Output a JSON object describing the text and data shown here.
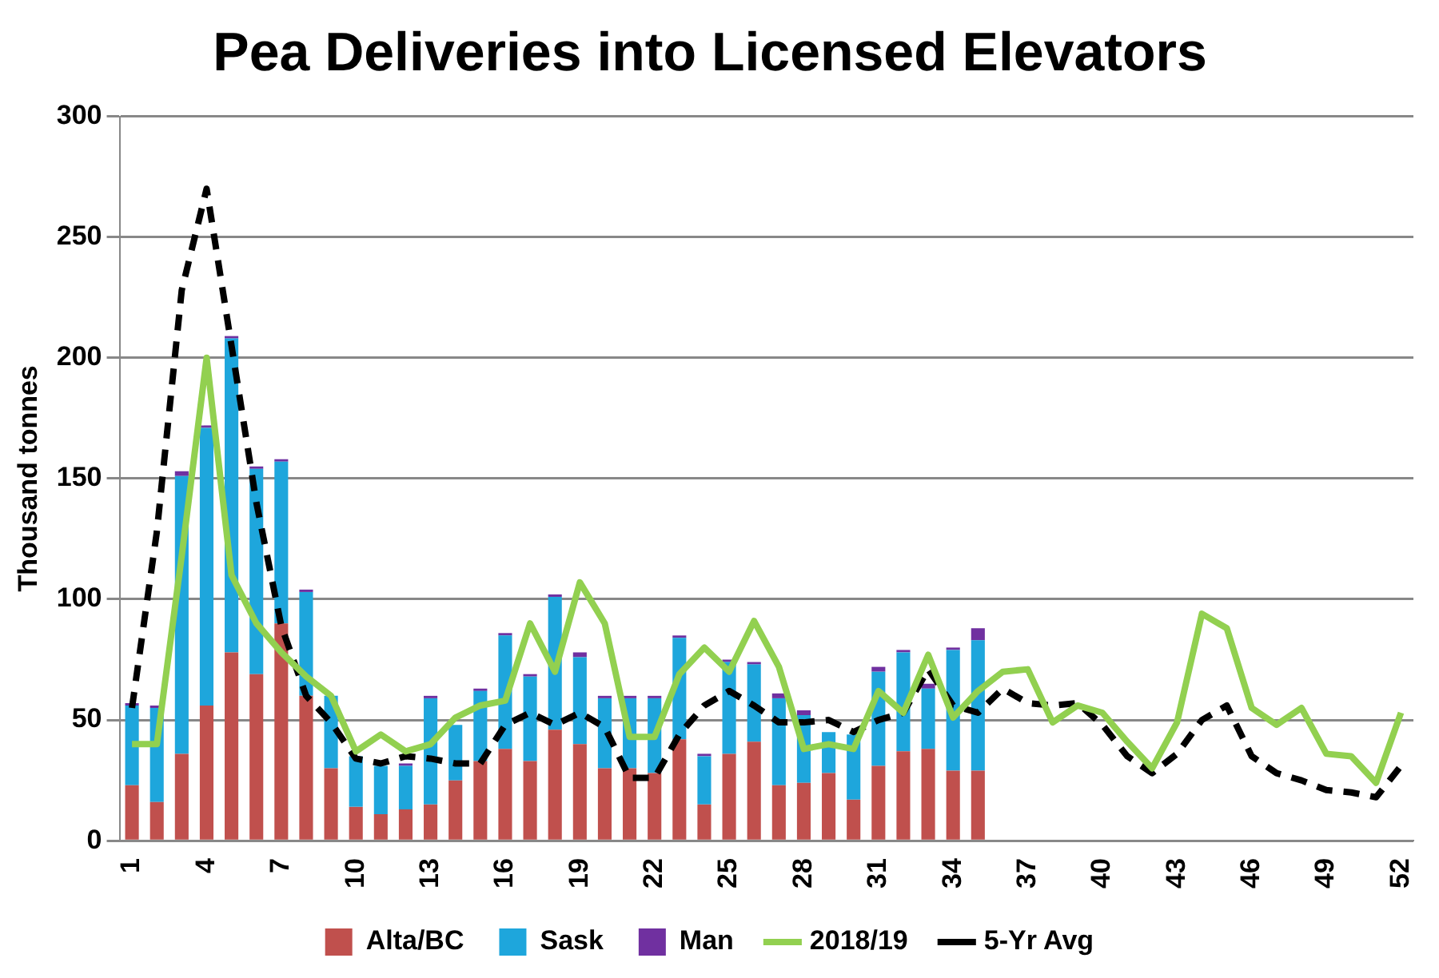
{
  "chart_data": {
    "type": "bar",
    "title": "Pea Deliveries into Licensed Elevators",
    "ylabel": "Thousand tonnes",
    "stacked": true,
    "grid": "y",
    "legend": "bottom",
    "marker": "none",
    "categories": [
      "1",
      null,
      null,
      "4",
      null,
      null,
      "7",
      null,
      null,
      "10",
      null,
      null,
      "13",
      null,
      null,
      "16",
      null,
      null,
      "19",
      null,
      null,
      "22",
      null,
      null,
      "25",
      null,
      null,
      "28",
      null,
      null,
      "31",
      null,
      null,
      "34",
      null,
      null,
      "37",
      null,
      null,
      "40",
      null,
      null,
      "43",
      null,
      null,
      "46",
      null,
      null,
      "49",
      null,
      null,
      "52"
    ],
    "ylim": [
      0,
      300
    ],
    "yticks": [
      0,
      50,
      100,
      150,
      200,
      250,
      300
    ],
    "series": [
      {
        "name": "Alta/BC",
        "color": "#c0504d",
        "values": [
          23,
          16,
          36,
          56,
          78,
          69,
          90,
          60,
          30,
          14,
          11,
          13,
          15,
          25,
          33,
          38,
          33,
          46,
          40,
          30,
          30,
          28,
          42,
          15,
          36,
          41,
          23,
          24,
          28,
          17,
          31,
          37,
          38,
          29,
          29,
          null,
          null,
          null,
          null,
          null,
          null,
          null,
          null,
          null,
          null,
          null,
          null,
          null,
          null,
          null,
          null,
          null
        ]
      },
      {
        "name": "Sask",
        "color": "#1ea6dc",
        "values": [
          33,
          39,
          115,
          115,
          130,
          85,
          67,
          43,
          30,
          21,
          20,
          18,
          44,
          23,
          29,
          47,
          35,
          55,
          36,
          29,
          29,
          31,
          42,
          20,
          38,
          32,
          36,
          28,
          17,
          27,
          39,
          41,
          25,
          50,
          54,
          null,
          null,
          null,
          null,
          null,
          null,
          null,
          null,
          null,
          null,
          null,
          null,
          null,
          null,
          null,
          null,
          null
        ]
      },
      {
        "name": "Man",
        "color": "#7030a0",
        "values": [
          1,
          1,
          2,
          1,
          1,
          1,
          1,
          1,
          0,
          0,
          null,
          1,
          1,
          0,
          1,
          1,
          1,
          1,
          2,
          1,
          1,
          1,
          1,
          1,
          1,
          1,
          2,
          2,
          0,
          0,
          2,
          1,
          2,
          1,
          5,
          null,
          null,
          null,
          null,
          null,
          null,
          null,
          null,
          null,
          null,
          null,
          null,
          null,
          null,
          null,
          null,
          null
        ]
      },
      {
        "name": "2018/19",
        "type": "line",
        "line_style": "solid",
        "color": "#92d050",
        "values": [
          40,
          40,
          118,
          200,
          110,
          90,
          78,
          68,
          60,
          37,
          44,
          37,
          40,
          51,
          56,
          58,
          90,
          70,
          107,
          90,
          43,
          43,
          69,
          80,
          70,
          91,
          72,
          38,
          40,
          38,
          62,
          53,
          77,
          51,
          62,
          70,
          71,
          49,
          56,
          53,
          41,
          30,
          49,
          94,
          88,
          55,
          48,
          55,
          36,
          35,
          24,
          53
        ]
      },
      {
        "name": "5-Yr Avg",
        "type": "line",
        "line_style": "dashed",
        "color": "#000000",
        "values": [
          55,
          128,
          228,
          270,
          205,
          140,
          89,
          60,
          49,
          34,
          32,
          35,
          34,
          32,
          32,
          48,
          53,
          48,
          53,
          47,
          26,
          26,
          44,
          56,
          62,
          56,
          49,
          49,
          50,
          45,
          50,
          53,
          71,
          56,
          53,
          63,
          57,
          56,
          57,
          48,
          35,
          28,
          36,
          50,
          56,
          35,
          28,
          25,
          21,
          20,
          18,
          31
        ]
      }
    ]
  }
}
